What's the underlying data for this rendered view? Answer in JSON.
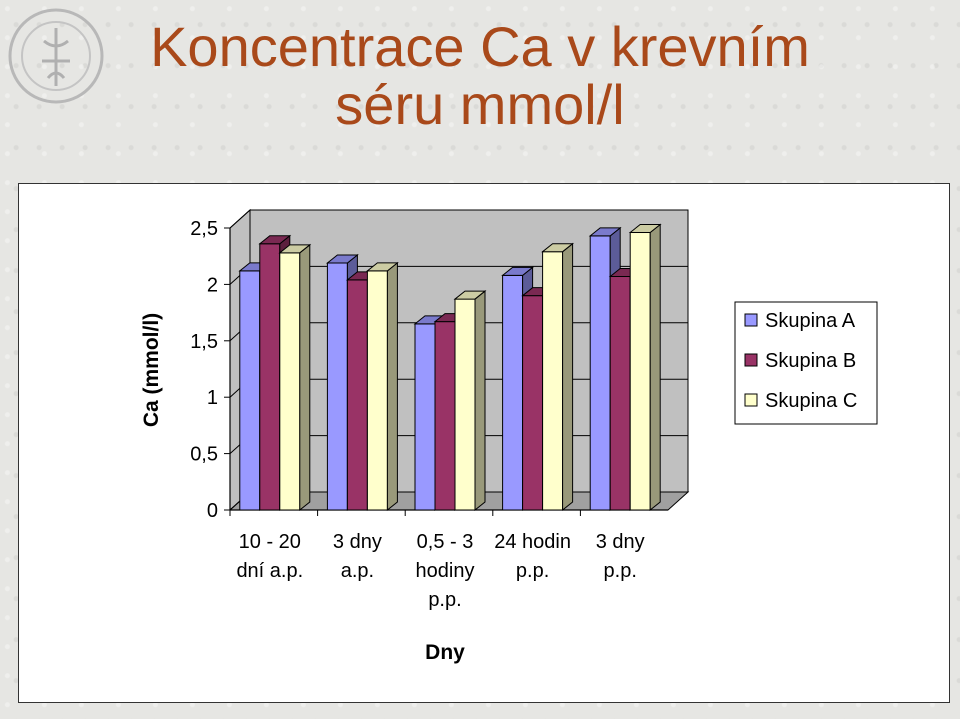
{
  "title": "Koncentrace Ca v krevním séru mmol/l",
  "title_lines": [
    "Koncentrace Ca v krevním",
    "séru mmol/l"
  ],
  "colors": {
    "title": "#a9491a",
    "series": [
      "#9999ff",
      "#993366",
      "#ffffcc"
    ]
  },
  "seal_icon": "university-seal",
  "chart_data": {
    "type": "bar",
    "style": "3d-clustered",
    "title": "",
    "xlabel": "Dny",
    "ylabel": "Ca (mmol/l)",
    "ylim": [
      0,
      2.5
    ],
    "yticks": [
      "0",
      "0,5",
      "1",
      "1,5",
      "2",
      "2,5"
    ],
    "ytick_values": [
      0,
      0.5,
      1,
      1.5,
      2,
      2.5
    ],
    "categories": [
      [
        "10 - 20",
        "dní a.p."
      ],
      [
        "3 dny",
        "a.p."
      ],
      [
        "0,5 - 3",
        "hodiny",
        "p.p."
      ],
      [
        "24 hodin",
        "p.p."
      ],
      [
        "3 dny",
        "p.p."
      ]
    ],
    "series": [
      {
        "name": "Skupina A",
        "values": [
          2.12,
          2.19,
          1.65,
          2.08,
          2.43
        ]
      },
      {
        "name": "Skupina B",
        "values": [
          2.36,
          2.04,
          1.67,
          1.9,
          2.07
        ]
      },
      {
        "name": "Skupina C",
        "values": [
          2.28,
          2.12,
          1.87,
          2.29,
          2.46
        ]
      }
    ],
    "grid": true,
    "legend_position": "right"
  }
}
